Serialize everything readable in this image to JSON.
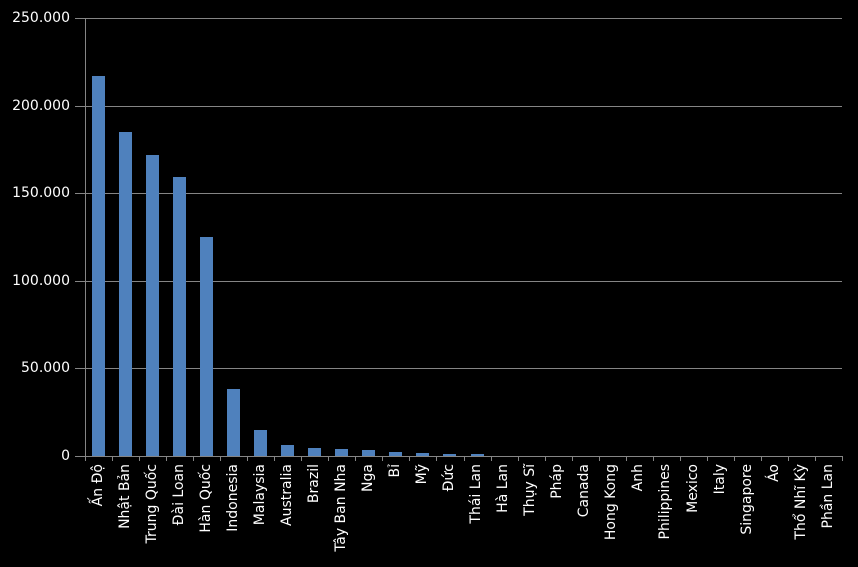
{
  "figure": {
    "background_color": "#000000",
    "text_color": "#FFFFFF",
    "grid_color": "#858585",
    "accent_color": "#4F81BD"
  },
  "chart_data": {
    "type": "bar",
    "title": "",
    "xlabel": "",
    "ylabel": "",
    "legend": false,
    "grid": true,
    "x_labels_rotation_degrees": 90,
    "ylim": [
      0,
      250000
    ],
    "ytick_interval": 50000,
    "ytick_labels_top_to_bottom": [
      "250.000",
      "200.000",
      "150.000",
      "100.000",
      "50.000",
      "0"
    ],
    "categories": [
      "Ấn Độ",
      "Nhật Bản",
      "Trung Quốc",
      "Đài Loan",
      "Hàn Quốc",
      "Indonesia",
      "Malaysia",
      "Australia",
      "Brazil",
      "Tây Ban Nha",
      "Nga",
      "Bỉ",
      "Mỹ",
      "Đức",
      "Thái Lan",
      "Hà Lan",
      "Thụy Sĩ",
      "Pháp",
      "Canada",
      "Hong Kong",
      "Anh",
      "Philippines",
      "Mexico",
      "Italy",
      "Singapore",
      "Áo",
      "Thổ Nhĩ Kỳ",
      "Phần Lan"
    ],
    "values": [
      217000,
      185000,
      172000,
      159000,
      125000,
      38500,
      15000,
      6500,
      4500,
      3800,
      3300,
      2500,
      1700,
      1100,
      900,
      250,
      220,
      200,
      180,
      150,
      130,
      110,
      90,
      70,
      50,
      40,
      30,
      20
    ],
    "bar_color": "#4F81BD",
    "background_color": "#000000",
    "text_color": "#FFFFFF",
    "gridline_color": "#858585"
  }
}
